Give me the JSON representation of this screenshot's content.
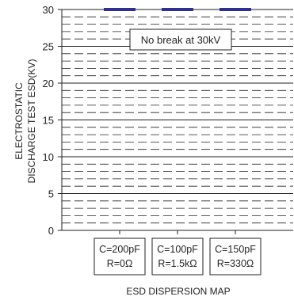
{
  "chart_data": {
    "type": "scatter",
    "title": "",
    "ylabel_lines": [
      "ELECTROSTATIC",
      "DISCHARGE TEST ESD(KV)"
    ],
    "xlabel": "ESD DISPERSION MAP",
    "ylim": [
      0,
      30
    ],
    "yticks": [
      0,
      5,
      10,
      15,
      20,
      25,
      30
    ],
    "grid": "solid every 5 kV, dashed every 1 kV",
    "annotation": "No break at 30kV",
    "categories": [
      {
        "lines": [
          "C=200pF",
          "R=0Ω"
        ]
      },
      {
        "lines": [
          "C=100pF",
          "R=1.5kΩ"
        ]
      },
      {
        "lines": [
          "C=150pF",
          "R=330Ω"
        ]
      }
    ],
    "series": [
      {
        "values": [
          30,
          30,
          30
        ],
        "color": "#2e3192",
        "marker": "horizontal-bar"
      }
    ]
  }
}
